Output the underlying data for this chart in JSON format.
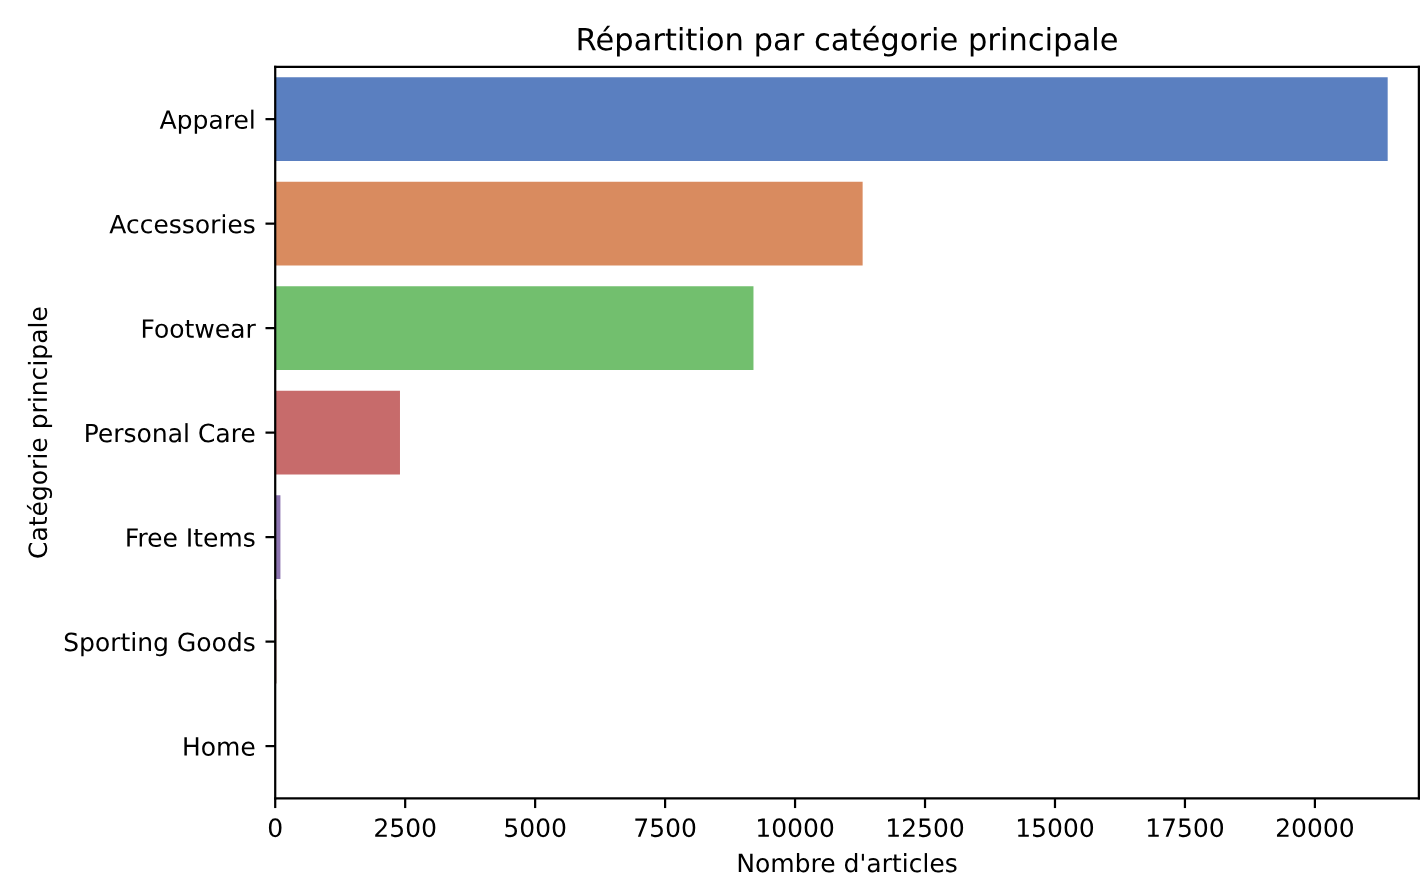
{
  "chart_data": {
    "type": "bar",
    "orientation": "horizontal",
    "title": "Répartition par catégorie principale",
    "xlabel": "Nombre d'articles",
    "ylabel": "Catégorie principale",
    "categories": [
      "Apparel",
      "Accessories",
      "Footwear",
      "Personal Care",
      "Free Items",
      "Sporting Goods",
      "Home"
    ],
    "values": [
      21400,
      11300,
      9200,
      2400,
      100,
      25,
      1
    ],
    "colors": [
      "#5a7fc0",
      "#d98b5f",
      "#72bf6e",
      "#c76b6b",
      "#8d75b0",
      "#8c6d5e",
      "#d08ec0"
    ],
    "xlim": [
      0,
      22000
    ],
    "xticks": [
      0,
      2500,
      5000,
      7500,
      10000,
      12500,
      15000,
      17500,
      20000
    ],
    "grid": false
  }
}
